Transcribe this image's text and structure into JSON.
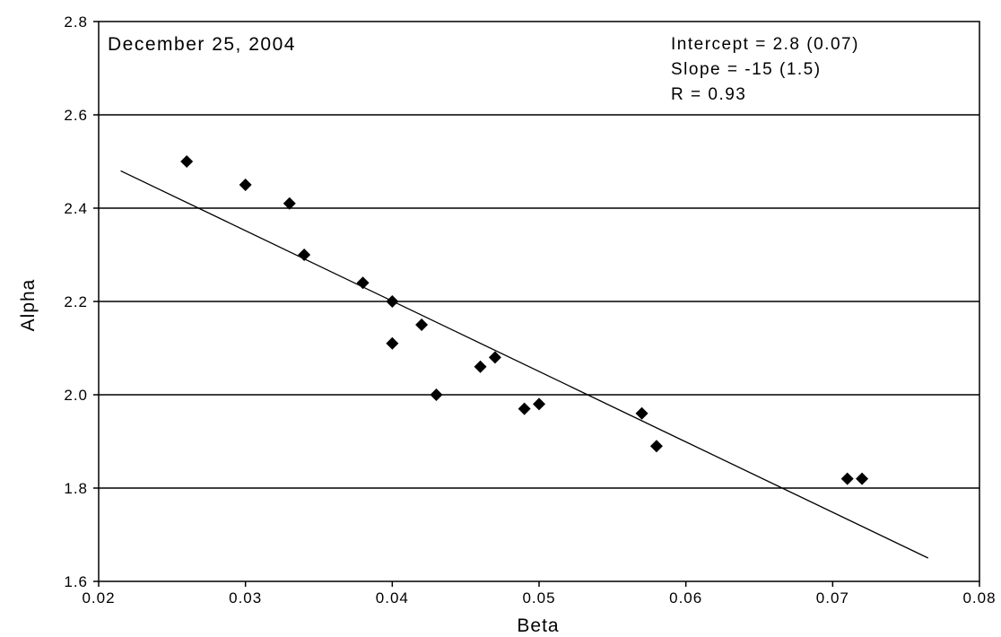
{
  "chart_data": {
    "type": "scatter",
    "title": "December 25, 2004",
    "xlabel": "Beta",
    "ylabel": "Alpha",
    "xlim": [
      0.02,
      0.08
    ],
    "ylim": [
      1.6,
      2.8
    ],
    "x_ticks": [
      "0.02",
      "0.03",
      "0.04",
      "0.05",
      "0.06",
      "0.07",
      "0.08"
    ],
    "y_ticks": [
      "1.6",
      "1.8",
      "2.0",
      "2.2",
      "2.4",
      "2.6",
      "2.8"
    ],
    "grid": "horizontal",
    "points": [
      {
        "x": 0.026,
        "y": 2.5
      },
      {
        "x": 0.03,
        "y": 2.45
      },
      {
        "x": 0.033,
        "y": 2.41
      },
      {
        "x": 0.034,
        "y": 2.3
      },
      {
        "x": 0.038,
        "y": 2.24
      },
      {
        "x": 0.04,
        "y": 2.2
      },
      {
        "x": 0.04,
        "y": 2.11
      },
      {
        "x": 0.042,
        "y": 2.15
      },
      {
        "x": 0.043,
        "y": 2.0
      },
      {
        "x": 0.046,
        "y": 2.06
      },
      {
        "x": 0.047,
        "y": 2.08
      },
      {
        "x": 0.049,
        "y": 1.97
      },
      {
        "x": 0.05,
        "y": 1.98
      },
      {
        "x": 0.057,
        "y": 1.96
      },
      {
        "x": 0.058,
        "y": 1.89
      },
      {
        "x": 0.071,
        "y": 1.82
      },
      {
        "x": 0.072,
        "y": 1.82
      }
    ],
    "fit_line": {
      "x": [
        0.0215,
        0.0765
      ],
      "y": [
        2.48,
        1.65
      ]
    },
    "annotations": [
      "Intercept  =  2.8 (0.07)",
      "Slope  = -15 (1.5)",
      "R = 0.93"
    ],
    "marker_color": "#000000"
  }
}
